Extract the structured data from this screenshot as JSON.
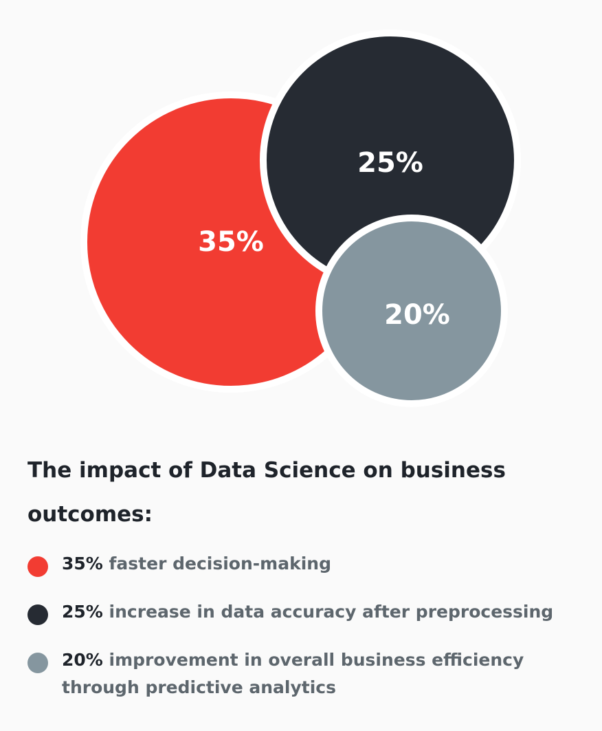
{
  "chart_data": {
    "type": "bubble",
    "title": "The impact of Data Science on business outcomes:",
    "series": [
      {
        "value": 35,
        "label": "35%",
        "description": "faster decision-making",
        "color": "#f23c32"
      },
      {
        "value": 25,
        "label": "25%",
        "description": "increase in data accuracy after preprocessing",
        "color": "#262b33"
      },
      {
        "value": 20,
        "label": "20%",
        "description": "improvement in overall business efficiency through predictive analytics",
        "color": "#85969f"
      }
    ]
  },
  "colors": {
    "background": "#fafafa",
    "bubble_border": "#ffffff",
    "heading": "#1e232a",
    "legend_text": "#5d666d"
  }
}
